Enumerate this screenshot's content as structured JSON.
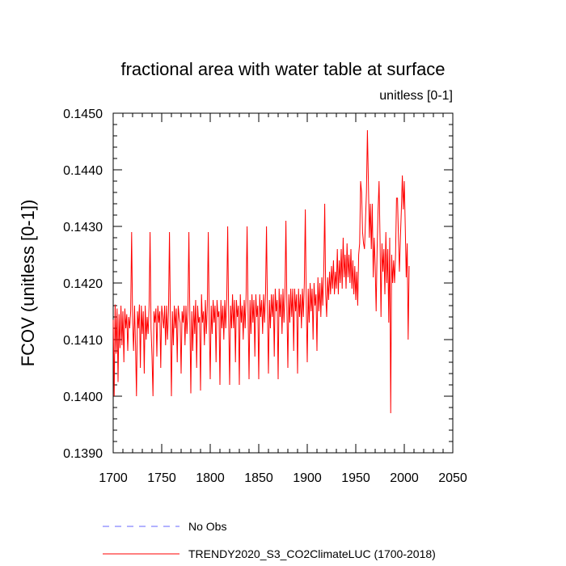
{
  "chart_data": {
    "type": "line",
    "title": "fractional area with water table at surface",
    "units_label": "unitless [0-1]",
    "ylabel": "FCOV  (unitless [0-1])",
    "xlabel": "",
    "xlim": [
      1700,
      2050
    ],
    "ylim": [
      0.139,
      0.145
    ],
    "x_ticks": [
      1700,
      1750,
      1800,
      1850,
      1900,
      1950,
      2000,
      2050
    ],
    "x_tick_labels": [
      "1700",
      "1750",
      "1800",
      "1850",
      "1900",
      "1950",
      "2000",
      "2050"
    ],
    "y_ticks": [
      0.139,
      0.14,
      0.141,
      0.142,
      0.143,
      0.144,
      0.145
    ],
    "y_tick_labels": [
      "0.1390",
      "0.1400",
      "0.1410",
      "0.1420",
      "0.1430",
      "0.1440",
      "0.1450"
    ],
    "colors": {
      "model": "#ff0000",
      "obs": "#6464ff",
      "axis": "#000000"
    },
    "legend": [
      {
        "name": "No Obs",
        "style": "dashed",
        "color": "#6464ff"
      },
      {
        "name": "TRENDY2020_S3_CO2ClimateLUC (1700-2018)",
        "style": "solid",
        "color": "#ff0000"
      }
    ],
    "series": [
      {
        "name": "TRENDY2020_S3_CO2ClimateLUC (1700-2018)",
        "x_start": 1700,
        "x_step": 1,
        "values": [
          0.14135,
          0.14,
          0.14162,
          0.14075,
          0.14155,
          0.14025,
          0.14145,
          0.14085,
          0.1416,
          0.1409,
          0.1415,
          0.1406,
          0.14155,
          0.1412,
          0.14145,
          0.1408,
          0.1414,
          0.1412,
          0.1415,
          0.1429,
          0.1413,
          0.1408,
          0.1416,
          0.1409,
          0.14,
          0.1415,
          0.1412,
          0.14162,
          0.1405,
          0.1416,
          0.1411,
          0.1415,
          0.1404,
          0.1416,
          0.141,
          0.1414,
          0.1411,
          0.1416,
          0.1429,
          0.1412,
          0.1407,
          0.14,
          0.1415,
          0.1413,
          0.14155,
          0.1407,
          0.1416,
          0.1413,
          0.1415,
          0.1405,
          0.1416,
          0.1414,
          0.1412,
          0.1416,
          0.1409,
          0.1416,
          0.141,
          0.1415,
          0.1429,
          0.1413,
          0.14,
          0.1415,
          0.1409,
          0.1416,
          0.1412,
          0.14155,
          0.1406,
          0.1416,
          0.1414,
          0.1413,
          0.1404,
          0.1415,
          0.1413,
          0.1416,
          0.1409,
          0.1416,
          0.1411,
          0.1415,
          0.1429,
          0.1414,
          0.14005,
          0.1415,
          0.1408,
          0.1416,
          0.1411,
          0.1417,
          0.1405,
          0.1416,
          0.1413,
          0.1414,
          0.1401,
          0.1418,
          0.1413,
          0.1415,
          0.1409,
          0.1417,
          0.1411,
          0.1416,
          0.1429,
          0.1413,
          0.1403,
          0.1416,
          0.1411,
          0.1417,
          0.1413,
          0.1416,
          0.1406,
          0.1417,
          0.1414,
          0.1415,
          0.1402,
          0.1417,
          0.1412,
          0.1416,
          0.141,
          0.1417,
          0.1412,
          0.1417,
          0.143,
          0.1414,
          0.1402,
          0.1416,
          0.1412,
          0.1418,
          0.1412,
          0.1417,
          0.1406,
          0.1417,
          0.1414,
          0.1416,
          0.1402,
          0.1418,
          0.1413,
          0.1416,
          0.141,
          0.1417,
          0.1412,
          0.1418,
          0.143,
          0.1415,
          0.1403,
          0.1417,
          0.1411,
          0.1418,
          0.1413,
          0.1417,
          0.1407,
          0.1418,
          0.1414,
          0.1416,
          0.1403,
          0.1418,
          0.1414,
          0.1417,
          0.1411,
          0.1418,
          0.1413,
          0.1418,
          0.143,
          0.1415,
          0.1404,
          0.1417,
          0.1412,
          0.1418,
          0.1414,
          0.1418,
          0.1407,
          0.1419,
          0.1415,
          0.1417,
          0.1403,
          0.1419,
          0.1414,
          0.1418,
          0.1411,
          0.1419,
          0.1413,
          0.1418,
          0.1431,
          0.1416,
          0.1405,
          0.1418,
          0.1413,
          0.1419,
          0.1414,
          0.1419,
          0.1408,
          0.1419,
          0.1415,
          0.1418,
          0.1404,
          0.1419,
          0.1414,
          0.1418,
          0.1412,
          0.1419,
          0.1414,
          0.142,
          0.1433,
          0.1416,
          0.1406,
          0.1419,
          0.1413,
          0.142,
          0.1415,
          0.1419,
          0.141,
          0.142,
          0.1416,
          0.1418,
          0.1408,
          0.1421,
          0.1415,
          0.142,
          0.1414,
          0.1421,
          0.1416,
          0.1422,
          0.1434,
          0.1418,
          0.1414,
          0.1421,
          0.1417,
          0.1422,
          0.1418,
          0.1423,
          0.1419,
          0.1424,
          0.1418,
          0.1422,
          0.1419,
          0.1426,
          0.1418,
          0.1424,
          0.142,
          0.1426,
          0.1419,
          0.1428,
          0.1421,
          0.1425,
          0.1419,
          0.1427,
          0.1421,
          0.1425,
          0.142,
          0.1426,
          0.1419,
          0.1424,
          0.1418,
          0.1423,
          0.1417,
          0.1422,
          0.1416,
          0.1425,
          0.1427,
          0.1438,
          0.1436,
          0.1429,
          0.1427,
          0.1426,
          0.1431,
          0.1436,
          0.1447,
          0.1438,
          0.1428,
          0.1434,
          0.1426,
          0.1434,
          0.1421,
          0.1428,
          0.1423,
          0.1415,
          0.1426,
          0.1433,
          0.1438,
          0.1428,
          0.1414,
          0.1427,
          0.1422,
          0.1426,
          0.1418,
          0.1429,
          0.142,
          0.1426,
          0.1413,
          0.1428,
          0.1397,
          0.1425,
          0.142,
          0.1424,
          0.142,
          0.1425,
          0.1435,
          0.1435,
          0.1428,
          0.1422,
          0.1428,
          0.1433,
          0.1439,
          0.1433,
          0.1438,
          0.143,
          0.1421,
          0.1427,
          0.141,
          0.1423
        ]
      }
    ]
  }
}
